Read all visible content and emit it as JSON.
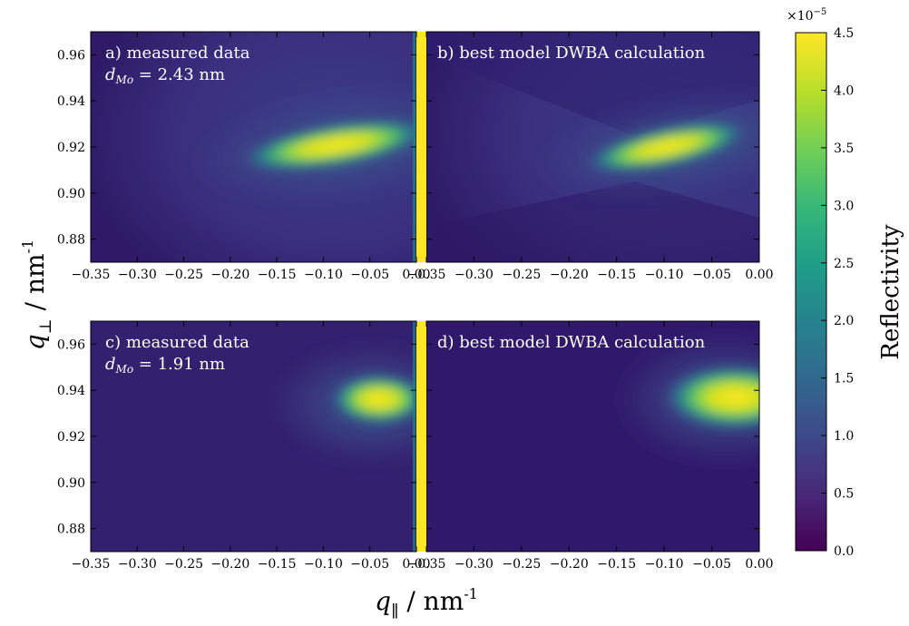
{
  "chart_data": [
    {
      "type": "heatmap",
      "panel": "a",
      "annotation": "a) measured data",
      "annotation_sub": "d_Mo = 2.43 nm",
      "xlim": [
        -0.35,
        0.0
      ],
      "ylim": [
        0.87,
        0.97
      ],
      "x_ticks": [
        "−0.35",
        "−0.30",
        "−0.25",
        "−0.20",
        "−0.15",
        "−0.10",
        "−0.05",
        "0.00"
      ],
      "y_ticks": [
        "0.96",
        "0.94",
        "0.92",
        "0.90",
        "0.88"
      ],
      "specular_line_at_q_par": 0.0,
      "hotspot": {
        "q_par": -0.1,
        "q_perp": 0.92,
        "reflectivity": 4.5e-05
      }
    },
    {
      "type": "heatmap",
      "panel": "b",
      "annotation": "b) best model DWBA calculation",
      "xlim": [
        -0.35,
        0.0
      ],
      "ylim": [
        0.87,
        0.97
      ],
      "x_ticks": [
        "−0.35",
        "−0.30",
        "−0.25",
        "−0.20",
        "−0.15",
        "−0.10",
        "−0.05",
        "0.00"
      ],
      "hotspot": {
        "q_par": -0.09,
        "q_perp": 0.92,
        "reflectivity": 4.5e-05
      }
    },
    {
      "type": "heatmap",
      "panel": "c",
      "annotation": "c) measured data",
      "annotation_sub": "d_Mo = 1.91 nm",
      "xlim": [
        -0.35,
        0.0
      ],
      "ylim": [
        0.87,
        0.97
      ],
      "x_ticks": [
        "−0.35",
        "−0.30",
        "−0.25",
        "−0.20",
        "−0.15",
        "−0.10",
        "−0.05",
        "0.00"
      ],
      "y_ticks": [
        "0.96",
        "0.94",
        "0.92",
        "0.90",
        "0.88"
      ],
      "specular_line_at_q_par": 0.0,
      "hotspot": {
        "q_par": -0.05,
        "q_perp": 0.935,
        "reflectivity": 4.5e-05
      }
    },
    {
      "type": "heatmap",
      "panel": "d",
      "annotation": "d) best model DWBA calculation",
      "xlim": [
        -0.35,
        0.0
      ],
      "ylim": [
        0.87,
        0.97
      ],
      "x_ticks": [
        "−0.35",
        "−0.30",
        "−0.25",
        "−0.20",
        "−0.15",
        "−0.10",
        "−0.05",
        "0.00"
      ],
      "hotspot": {
        "q_par": -0.03,
        "q_perp": 0.935,
        "reflectivity": 4.5e-05
      }
    }
  ],
  "colorbar": {
    "label": "Reflectivity",
    "multiplier": "×10",
    "multiplier_exp": "−5",
    "range": [
      0.0,
      4.5
    ],
    "ticks": [
      "4.5",
      "4.0",
      "3.5",
      "3.0",
      "2.5",
      "2.0",
      "1.5",
      "1.0",
      "0.5",
      "0.0"
    ],
    "colormap": "viridis",
    "colors": [
      "#440154",
      "#482878",
      "#3e4989",
      "#31688e",
      "#26828e",
      "#1f9e89",
      "#35b779",
      "#6ece58",
      "#b5de2b",
      "#fde725"
    ]
  },
  "axes": {
    "ylabel_sym": "q",
    "ylabel_sub": "⊥",
    "ylabel_unit": " / nm",
    "ylabel_exp": "-1",
    "xlabel_sym": "q",
    "xlabel_sub": "∥",
    "xlabel_unit": " / nm",
    "xlabel_exp": "-1"
  }
}
